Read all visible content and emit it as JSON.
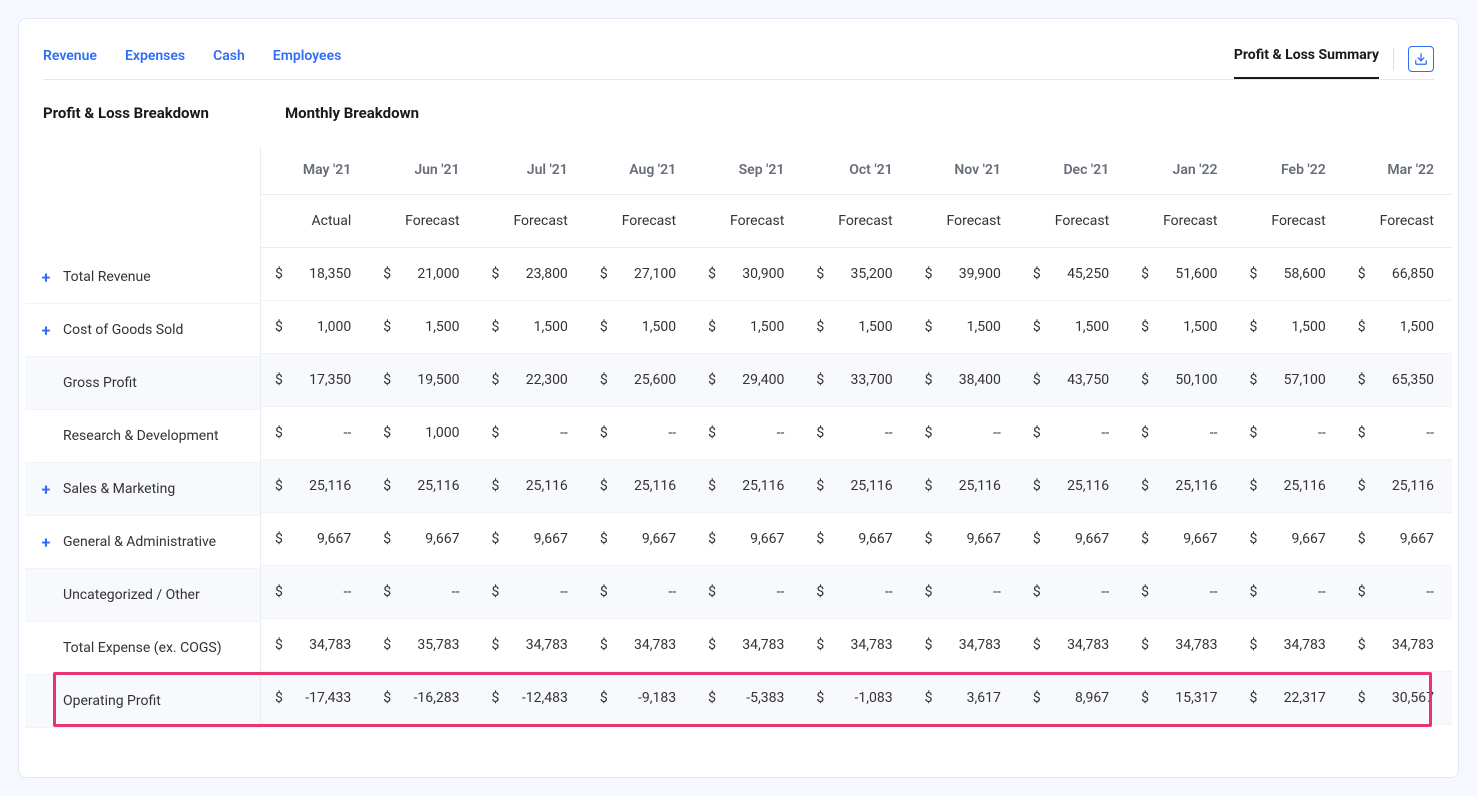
{
  "tabs": [
    "Revenue",
    "Expenses",
    "Cash",
    "Employees"
  ],
  "summary_tab": "Profit & Loss Summary",
  "left_title": "Profit & Loss Breakdown",
  "right_title": "Monthly Breakdown",
  "months": [
    "May '21",
    "Jun '21",
    "Jul '21",
    "Aug '21",
    "Sep '21",
    "Oct '21",
    "Nov '21",
    "Dec '21",
    "Jan '22",
    "Feb '22",
    "Mar '22"
  ],
  "types": [
    "Actual",
    "Forecast",
    "Forecast",
    "Forecast",
    "Forecast",
    "Forecast",
    "Forecast",
    "Forecast",
    "Forecast",
    "Forecast",
    "Forecast"
  ],
  "rows": [
    {
      "label": "Total Revenue",
      "expandable": true,
      "shaded": false,
      "values": [
        "18,350",
        "21,000",
        "23,800",
        "27,100",
        "30,900",
        "35,200",
        "39,900",
        "45,250",
        "51,600",
        "58,600",
        "66,850"
      ]
    },
    {
      "label": "Cost of Goods Sold",
      "expandable": true,
      "shaded": false,
      "values": [
        "1,000",
        "1,500",
        "1,500",
        "1,500",
        "1,500",
        "1,500",
        "1,500",
        "1,500",
        "1,500",
        "1,500",
        "1,500"
      ]
    },
    {
      "label": "Gross Profit",
      "expandable": false,
      "shaded": true,
      "values": [
        "17,350",
        "19,500",
        "22,300",
        "25,600",
        "29,400",
        "33,700",
        "38,400",
        "43,750",
        "50,100",
        "57,100",
        "65,350"
      ]
    },
    {
      "label": "Research & Development",
      "expandable": false,
      "shaded": false,
      "values": [
        "--",
        "1,000",
        "--",
        "--",
        "--",
        "--",
        "--",
        "--",
        "--",
        "--",
        "--"
      ]
    },
    {
      "label": "Sales & Marketing",
      "expandable": true,
      "shaded": true,
      "values": [
        "25,116",
        "25,116",
        "25,116",
        "25,116",
        "25,116",
        "25,116",
        "25,116",
        "25,116",
        "25,116",
        "25,116",
        "25,116"
      ]
    },
    {
      "label": "General & Administrative",
      "expandable": true,
      "shaded": false,
      "values": [
        "9,667",
        "9,667",
        "9,667",
        "9,667",
        "9,667",
        "9,667",
        "9,667",
        "9,667",
        "9,667",
        "9,667",
        "9,667"
      ]
    },
    {
      "label": "Uncategorized / Other",
      "expandable": false,
      "shaded": true,
      "values": [
        "--",
        "--",
        "--",
        "--",
        "--",
        "--",
        "--",
        "--",
        "--",
        "--",
        "--"
      ]
    },
    {
      "label": "Total Expense (ex. COGS)",
      "expandable": false,
      "shaded": false,
      "values": [
        "34,783",
        "35,783",
        "34,783",
        "34,783",
        "34,783",
        "34,783",
        "34,783",
        "34,783",
        "34,783",
        "34,783",
        "34,783"
      ]
    },
    {
      "label": "Operating Profit",
      "expandable": false,
      "shaded": true,
      "highlight": true,
      "values": [
        "-17,433",
        "-16,283",
        "-12,483",
        "-9,183",
        "-5,383",
        "-1,083",
        "3,617",
        "8,967",
        "15,317",
        "22,317",
        "30,567"
      ]
    }
  ],
  "currency": "$",
  "colors": {
    "page_bg": "#f5f8ff",
    "card_bg": "#ffffff",
    "border": "#e3e8f0",
    "tab_link": "#2f6df6",
    "text": "#1a1a1a",
    "muted": "#666c78",
    "row_shade": "#f7f9fd",
    "highlight": "#e9346f"
  }
}
